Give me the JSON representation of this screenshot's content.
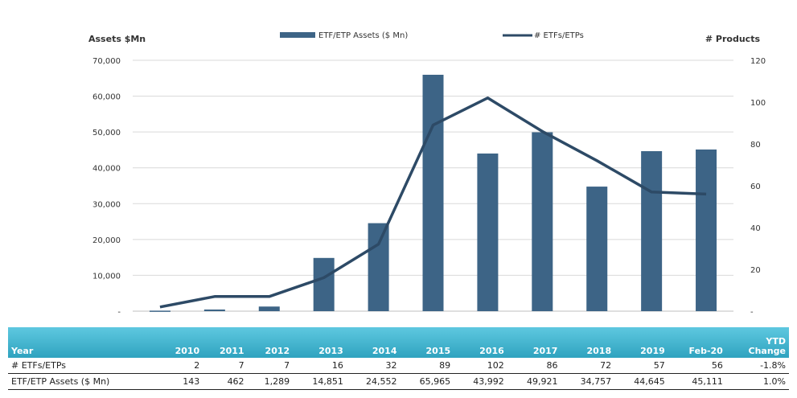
{
  "chart_data": {
    "type": "bar",
    "categories": [
      "2010",
      "2011",
      "2012",
      "2013",
      "2014",
      "2015",
      "2016",
      "2017",
      "2018",
      "2019",
      "Feb-20"
    ],
    "series": [
      {
        "name": "ETF/ETP Assets ($ Mn)",
        "type": "bar",
        "axis": "left",
        "values": [
          143,
          462,
          1289,
          14851,
          24552,
          65965,
          43992,
          49921,
          34757,
          44645,
          45111
        ],
        "color": "#3d6486"
      },
      {
        "name": "# ETFs/ETPs",
        "type": "line",
        "axis": "right",
        "values": [
          2,
          7,
          7,
          16,
          32,
          89,
          102,
          86,
          72,
          57,
          56
        ],
        "color": "#2d4a66"
      }
    ],
    "ylabel": "Assets $Mn",
    "y2label": "# Products",
    "ylim": [
      0,
      70000
    ],
    "y2lim": [
      0,
      120
    ],
    "yticks": [
      "-",
      "10,000",
      "20,000",
      "30,000",
      "40,000",
      "50,000",
      "60,000",
      "70,000"
    ],
    "y2ticks": [
      "-",
      "20",
      "40",
      "60",
      "80",
      "100",
      "120"
    ],
    "grid": true,
    "legend": "top"
  },
  "table": {
    "headers": [
      "Year",
      "2010",
      "2011",
      "2012",
      "2013",
      "2014",
      "2015",
      "2016",
      "2017",
      "2018",
      "2019",
      "Feb-20"
    ],
    "ytd_header": [
      "YTD",
      "Change"
    ],
    "rows": [
      {
        "cells": [
          "# ETFs/ETPs",
          "2",
          "7",
          "7",
          "16",
          "32",
          "89",
          "102",
          "86",
          "72",
          "57",
          "56",
          "-1.8%"
        ]
      },
      {
        "cells": [
          "ETF/ETP Assets ($ Mn)",
          "143",
          "462",
          "1,289",
          "14,851",
          "24,552",
          "65,965",
          "43,992",
          "49,921",
          "34,757",
          "44,645",
          "45,111",
          "1.0%"
        ]
      }
    ]
  },
  "colors": {
    "bar": "#3d6486",
    "line": "#2d4a66",
    "grid": "#d9d9d9",
    "table_header": "#3bb0cb"
  }
}
